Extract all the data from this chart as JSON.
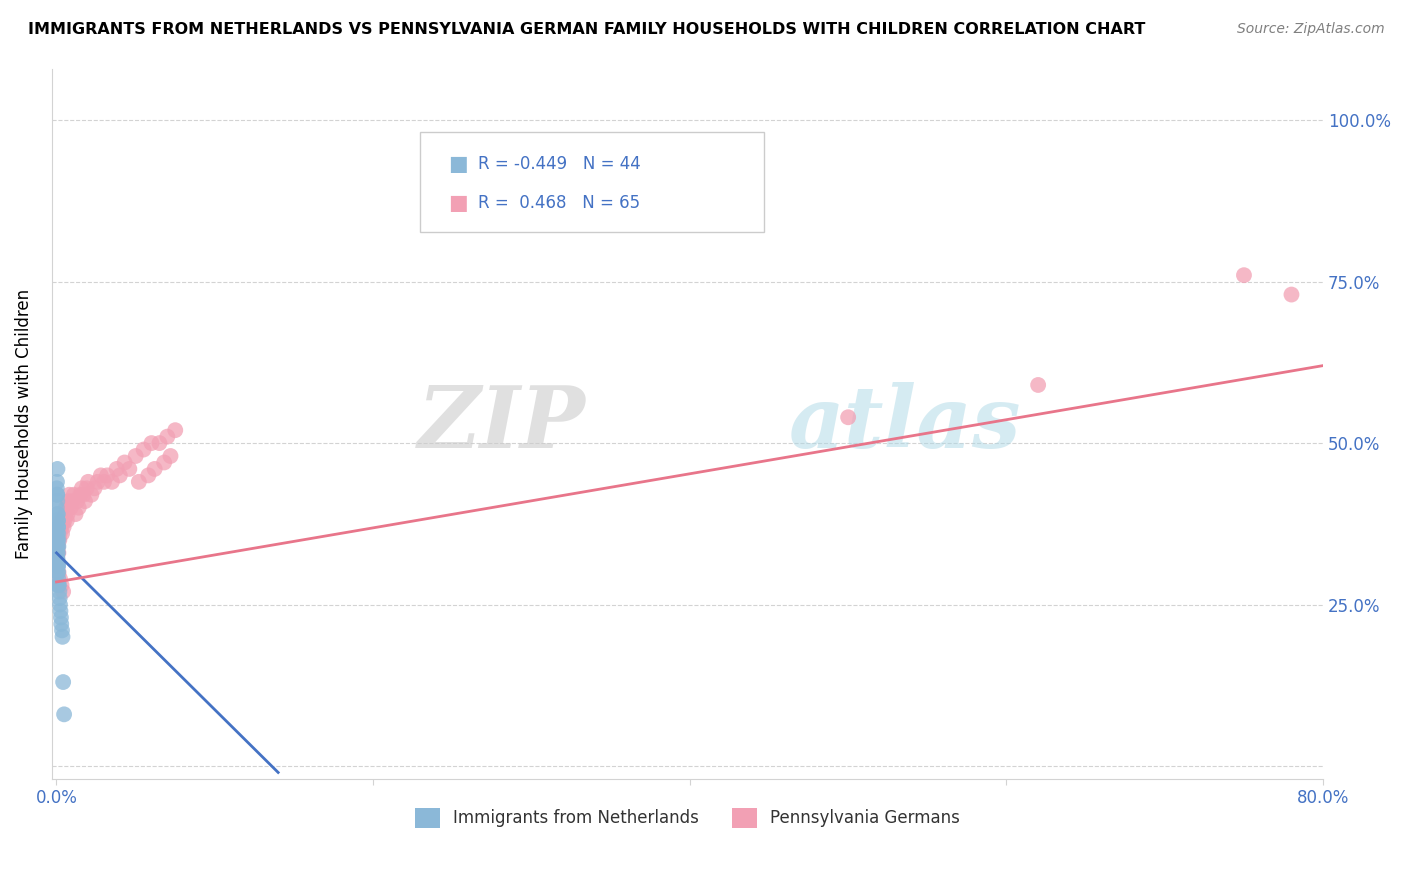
{
  "title": "IMMIGRANTS FROM NETHERLANDS VS PENNSYLVANIA GERMAN FAMILY HOUSEHOLDS WITH CHILDREN CORRELATION CHART",
  "source": "Source: ZipAtlas.com",
  "ylabel": "Family Households with Children",
  "watermark_zip": "ZIP",
  "watermark_atlas": "atlas",
  "xlim": [
    -0.003,
    0.8
  ],
  "ylim": [
    -0.02,
    1.08
  ],
  "xticks": [
    0.0,
    0.2,
    0.4,
    0.6,
    0.8
  ],
  "xtick_labels": [
    "0.0%",
    "",
    "",
    "",
    "80.0%"
  ],
  "yticks_right": [
    0.25,
    0.5,
    0.75,
    1.0
  ],
  "ytick_labels_right": [
    "25.0%",
    "50.0%",
    "75.0%",
    "100.0%"
  ],
  "blue_color": "#8BB8D8",
  "pink_color": "#F2A0B4",
  "blue_line_color": "#4472C4",
  "pink_line_color": "#E8758A",
  "blue_R": -0.449,
  "blue_N": 44,
  "pink_R": 0.468,
  "pink_N": 65,
  "legend1_label": "Immigrants from Netherlands",
  "legend2_label": "Pennsylvania Germans",
  "blue_scatter_x": [
    0.0002,
    0.0003,
    0.0005,
    0.0006,
    0.0007,
    0.0009,
    0.001,
    0.0011,
    0.0012,
    0.0003,
    0.0004,
    0.0006,
    0.0007,
    0.0008,
    0.001,
    0.0011,
    0.0013,
    0.0002,
    0.0004,
    0.0005,
    0.0007,
    0.0008,
    0.0009,
    0.0012,
    0.0003,
    0.0005,
    0.0006,
    0.0008,
    0.001,
    0.0004,
    0.0006,
    0.0007,
    0.0009,
    0.0015,
    0.0018,
    0.002,
    0.0022,
    0.0025,
    0.0028,
    0.003,
    0.0035,
    0.0038,
    0.0042,
    0.0048
  ],
  "blue_scatter_y": [
    0.4,
    0.44,
    0.42,
    0.46,
    0.39,
    0.38,
    0.37,
    0.36,
    0.35,
    0.35,
    0.34,
    0.33,
    0.32,
    0.31,
    0.3,
    0.29,
    0.28,
    0.43,
    0.42,
    0.41,
    0.39,
    0.38,
    0.37,
    0.34,
    0.36,
    0.35,
    0.34,
    0.33,
    0.31,
    0.32,
    0.31,
    0.3,
    0.28,
    0.28,
    0.27,
    0.26,
    0.25,
    0.24,
    0.23,
    0.22,
    0.21,
    0.2,
    0.13,
    0.08
  ],
  "pink_scatter_x": [
    0.0002,
    0.0004,
    0.0006,
    0.0008,
    0.001,
    0.0012,
    0.0015,
    0.0018,
    0.002,
    0.0025,
    0.003,
    0.0035,
    0.004,
    0.0045,
    0.005,
    0.0055,
    0.006,
    0.0065,
    0.007,
    0.0075,
    0.008,
    0.009,
    0.01,
    0.011,
    0.012,
    0.013,
    0.014,
    0.015,
    0.016,
    0.017,
    0.018,
    0.019,
    0.02,
    0.022,
    0.024,
    0.026,
    0.028,
    0.03,
    0.032,
    0.035,
    0.038,
    0.04,
    0.043,
    0.046,
    0.05,
    0.055,
    0.06,
    0.065,
    0.07,
    0.075,
    0.0003,
    0.0007,
    0.0013,
    0.0022,
    0.0032,
    0.0042,
    0.052,
    0.058,
    0.062,
    0.068,
    0.072,
    0.75,
    0.78,
    0.62,
    0.5
  ],
  "pink_scatter_y": [
    0.34,
    0.36,
    0.33,
    0.35,
    0.34,
    0.33,
    0.37,
    0.35,
    0.36,
    0.38,
    0.37,
    0.36,
    0.38,
    0.37,
    0.38,
    0.39,
    0.4,
    0.38,
    0.39,
    0.41,
    0.42,
    0.4,
    0.41,
    0.42,
    0.39,
    0.41,
    0.4,
    0.42,
    0.43,
    0.42,
    0.41,
    0.43,
    0.44,
    0.42,
    0.43,
    0.44,
    0.45,
    0.44,
    0.45,
    0.44,
    0.46,
    0.45,
    0.47,
    0.46,
    0.48,
    0.49,
    0.5,
    0.5,
    0.51,
    0.52,
    0.32,
    0.31,
    0.3,
    0.29,
    0.28,
    0.27,
    0.44,
    0.45,
    0.46,
    0.47,
    0.48,
    0.76,
    0.73,
    0.59,
    0.54
  ],
  "blue_line_x": [
    0.0,
    0.14
  ],
  "blue_line_y": [
    0.33,
    -0.01
  ],
  "pink_line_x": [
    0.0,
    0.8
  ],
  "pink_line_y": [
    0.285,
    0.62
  ]
}
